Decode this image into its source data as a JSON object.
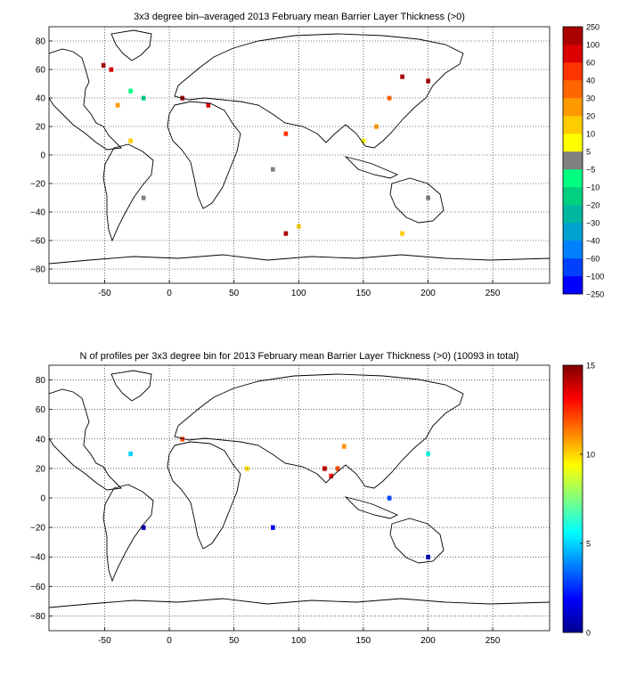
{
  "chart_data": [
    {
      "type": "heatmap",
      "title": "3x3 degree bin–averaged 2013 February mean Barrier Layer Thickness (>0)",
      "xlim": [
        -93,
        294
      ],
      "ylim": [
        -90,
        90
      ],
      "x_ticks": [
        -50,
        0,
        50,
        100,
        150,
        200,
        250
      ],
      "y_ticks": [
        80,
        60,
        40,
        20,
        0,
        -20,
        -40,
        -60,
        -80
      ],
      "x_tick_labels": [
        "-50",
        "0",
        "50",
        "100",
        "150",
        "200",
        "250"
      ],
      "y_tick_labels": [
        "80",
        "60",
        "40",
        "20",
        "0",
        "−20",
        "−40",
        "−60",
        "−80"
      ],
      "grid": true,
      "bin_size_deg": 3,
      "colorbar": {
        "scale": "discrete",
        "colors": [
          "#0000ff",
          "#0040ff",
          "#0080ff",
          "#00a0d0",
          "#00b8a0",
          "#00d080",
          "#00ff80",
          "#808080",
          "#ffff00",
          "#ffcc00",
          "#ff9900",
          "#ff6600",
          "#ff3300",
          "#dd0000",
          "#aa0000"
        ],
        "labels": [
          "−250",
          "−100",
          "−60",
          "−40",
          "−30",
          "−20",
          "−10",
          "−5",
          "5",
          "10",
          "20",
          "30",
          "40",
          "60",
          "100",
          "250"
        ]
      },
      "bins": [
        {
          "lon": -51,
          "lat": 63,
          "value": 150
        },
        {
          "lon": -45,
          "lat": 60,
          "value": 80
        },
        {
          "lon": -30,
          "lat": 45,
          "value": -10
        },
        {
          "lon": -20,
          "lat": 40,
          "value": -12
        },
        {
          "lon": -40,
          "lat": 35,
          "value": 25
        },
        {
          "lon": 10,
          "lat": 40,
          "value": 120
        },
        {
          "lon": 30,
          "lat": 35,
          "value": 70
        },
        {
          "lon": 180,
          "lat": 55,
          "value": 150
        },
        {
          "lon": 200,
          "lat": 52,
          "value": 110
        },
        {
          "lon": 170,
          "lat": 40,
          "value": 35
        },
        {
          "lon": 160,
          "lat": 20,
          "value": 25
        },
        {
          "lon": 90,
          "lat": 15,
          "value": 45
        },
        {
          "lon": -30,
          "lat": 10,
          "value": 12
        },
        {
          "lon": 150,
          "lat": 10,
          "value": 8
        },
        {
          "lon": 80,
          "lat": -10,
          "value": 1
        },
        {
          "lon": 200,
          "lat": -30,
          "value": 1
        },
        {
          "lon": -20,
          "lat": -30,
          "value": 1
        },
        {
          "lon": 100,
          "lat": -50,
          "value": 15
        },
        {
          "lon": 90,
          "lat": -55,
          "value": 110
        },
        {
          "lon": 180,
          "lat": -55,
          "value": 12
        }
      ]
    },
    {
      "type": "heatmap",
      "title": "N of profiles per 3x3 degree bin for 2013 February mean Barrier Layer Thickness (>0) (10093 in total)",
      "total_profiles": 10093,
      "xlim": [
        -93,
        294
      ],
      "ylim": [
        -90,
        90
      ],
      "x_ticks": [
        -50,
        0,
        50,
        100,
        150,
        200,
        250
      ],
      "y_ticks": [
        80,
        60,
        40,
        20,
        0,
        -20,
        -40,
        -60,
        -80
      ],
      "x_tick_labels": [
        "-50",
        "0",
        "50",
        "100",
        "150",
        "200",
        "250"
      ],
      "y_tick_labels": [
        "80",
        "60",
        "40",
        "20",
        "0",
        "−20",
        "−40",
        "−60",
        "−80"
      ],
      "grid": true,
      "bin_size_deg": 3,
      "colorbar": {
        "scale": "continuous",
        "colormap": "jet",
        "min": 0,
        "max": 15,
        "ticks": [
          0,
          5,
          10,
          15
        ],
        "tick_labels": [
          "0",
          "5",
          "10",
          "15"
        ]
      },
      "bins": [
        {
          "lon": 120,
          "lat": 20,
          "value": 14
        },
        {
          "lon": 125,
          "lat": 15,
          "value": 13
        },
        {
          "lon": 130,
          "lat": 20,
          "value": 12
        },
        {
          "lon": 10,
          "lat": 40,
          "value": 12
        },
        {
          "lon": 135,
          "lat": 35,
          "value": 11
        },
        {
          "lon": 60,
          "lat": 20,
          "value": 10
        },
        {
          "lon": 200,
          "lat": 30,
          "value": 6
        },
        {
          "lon": -30,
          "lat": 30,
          "value": 5
        },
        {
          "lon": 170,
          "lat": 0,
          "value": 3
        },
        {
          "lon": 80,
          "lat": -20,
          "value": 2
        },
        {
          "lon": -20,
          "lat": -20,
          "value": 1
        },
        {
          "lon": 200,
          "lat": -40,
          "value": 1
        }
      ]
    }
  ]
}
